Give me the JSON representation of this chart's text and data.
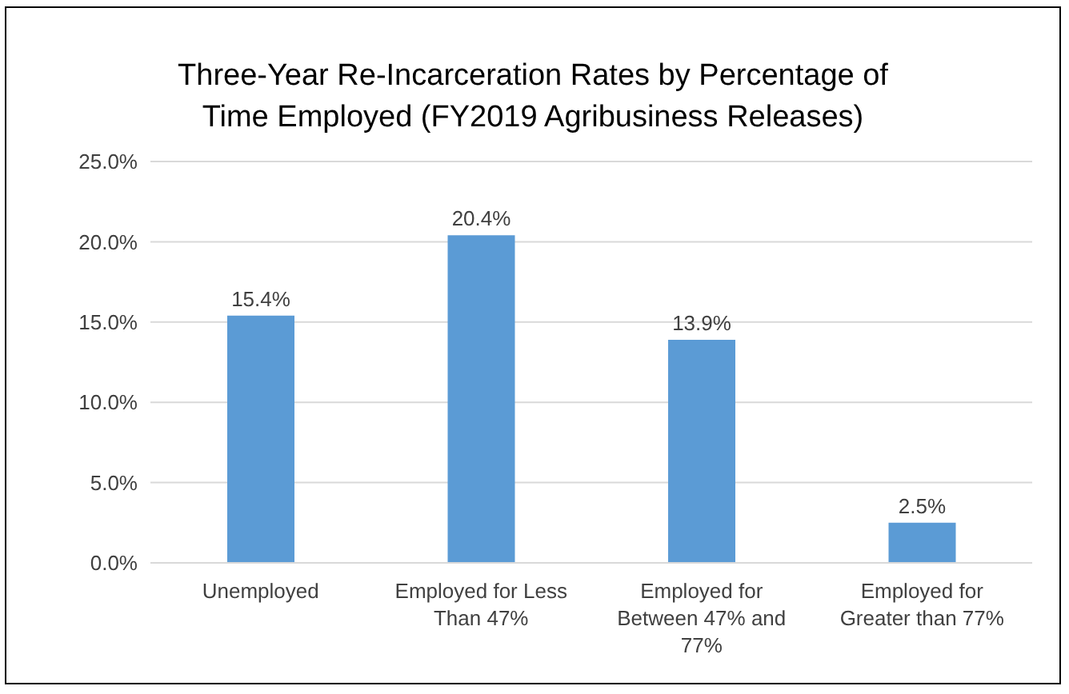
{
  "chart_data": {
    "type": "bar",
    "title": "Three-Year Re-Incarceration Rates by Percentage of Time Employed (FY2019 Agribusiness Releases)",
    "categories": [
      "Unemployed",
      "Employed for Less Than 47%",
      "Employed for Between 47% and 77%",
      "Employed for Greater than 77%"
    ],
    "values": [
      15.4,
      20.4,
      13.9,
      2.5
    ],
    "color": "#5b9bd5",
    "value_labels": [
      "15.4%",
      "20.4%",
      "13.9%",
      "2.5%"
    ],
    "ylim": [
      0,
      25
    ],
    "yticks": [
      {
        "value": 0,
        "label": "0.0%"
      },
      {
        "value": 5,
        "label": "5.0%"
      },
      {
        "value": 10,
        "label": "10.0%"
      },
      {
        "value": 15,
        "label": "15.0%"
      },
      {
        "value": 20,
        "label": "20.0%"
      },
      {
        "value": 25,
        "label": "25.0%"
      }
    ],
    "grid": "y"
  }
}
